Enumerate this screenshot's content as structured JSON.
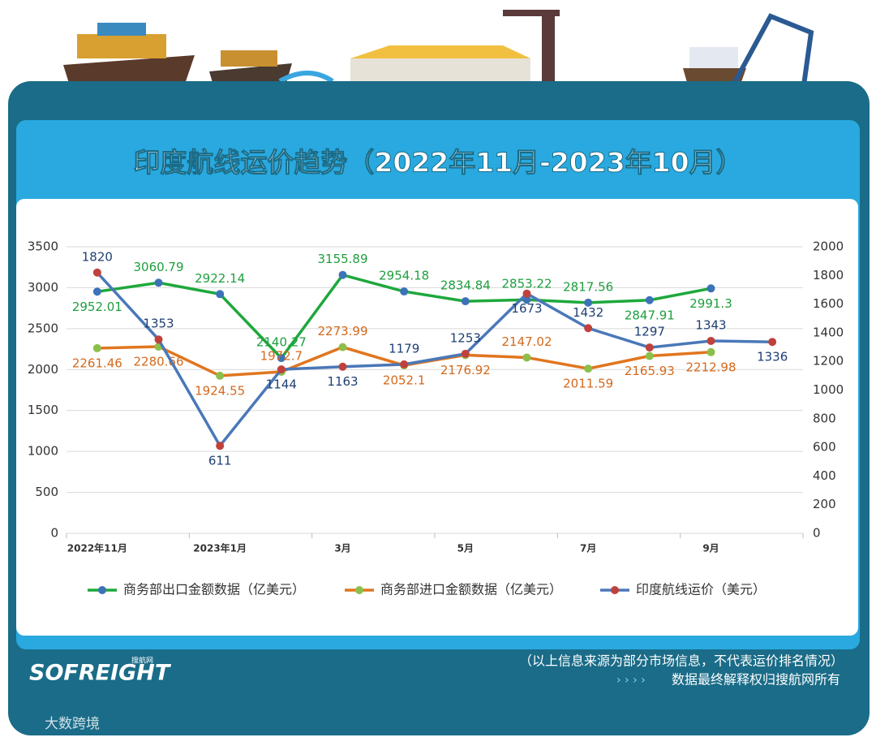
{
  "title": "印度航线运价趋势（2022年11月-2023年10月）",
  "chart_data": {
    "type": "line",
    "categories": [
      "2022年11月",
      null,
      "2023年1月",
      null,
      "3月",
      null,
      "5月",
      null,
      "7月",
      null,
      "9月",
      null
    ],
    "series": [
      {
        "name": "商务部出口金额数据（亿美元）",
        "color": "#1ea83c",
        "marker_color": "#3c73b8",
        "label_color": "#1e9e3e",
        "values": [
          2952.01,
          3060.79,
          2922.14,
          2140.27,
          3155.89,
          2954.18,
          2834.84,
          2853.22,
          2817.56,
          2847.91,
          2991.3,
          null
        ]
      },
      {
        "name": "商务部进口金额数据（亿美元）",
        "color": "#e0761f",
        "marker_color": "#8cbf4a",
        "label_color": "#d4691b",
        "values": [
          2261.46,
          2280.66,
          1924.55,
          1972.7,
          2273.99,
          2052.1,
          2176.92,
          2147.02,
          2011.59,
          2165.93,
          2212.98,
          null
        ]
      },
      {
        "name": "印度航线运价（美元）",
        "color": "#4a78b8",
        "marker_color": "#c0413c",
        "label_color": "#1f3f73",
        "axis": "y2",
        "values": [
          1820,
          1353,
          611,
          1144,
          1163,
          1179,
          1253,
          1673,
          1432,
          1297,
          1343,
          1336
        ]
      }
    ],
    "ylim": [
      0,
      3500
    ],
    "yticks": [
      0,
      500,
      1000,
      1500,
      2000,
      2500,
      3000,
      3500
    ],
    "y2lim": [
      0,
      2000
    ],
    "y2ticks": [
      0,
      200,
      400,
      600,
      800,
      1000,
      1200,
      1400,
      1600,
      1800,
      2000
    ],
    "grid": true,
    "legend": "bottom"
  },
  "footer": {
    "note": "（以上信息来源为部分市场信息，不代表运价排名情况）",
    "rights": "数据最终解释权归搜航网所有",
    "logo": "SOFREIGHT",
    "logo_sub": "搜航网"
  },
  "watermark": "大数跨境"
}
